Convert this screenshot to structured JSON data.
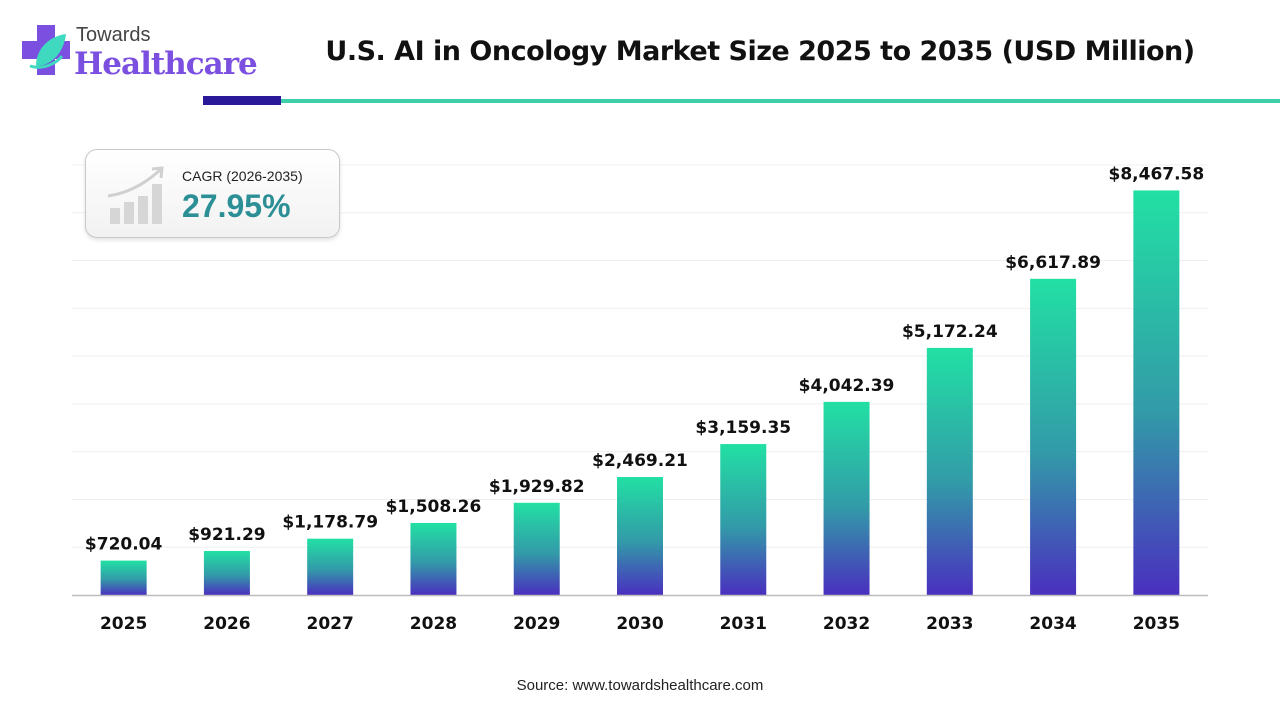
{
  "brand": {
    "line1": "Towards",
    "line2": "Healthcare"
  },
  "cagr": {
    "label": "CAGR (2026-2035)",
    "value": "27.95%"
  },
  "source": "Source: www.towardshealthcare.com",
  "colors": {
    "bar_top": "#22e0a4",
    "bar_bottom": "#4a2fbf",
    "accent_dark": "#2a1a9a",
    "accent_teal": "#3ccfa8",
    "cagr_text": "#2d8f96"
  },
  "chart_data": {
    "type": "bar",
    "title": "U.S. AI in Oncology Market Size 2025 to 2035 (USD Million)",
    "xlabel": "",
    "ylabel": "",
    "categories": [
      "2025",
      "2026",
      "2027",
      "2028",
      "2029",
      "2030",
      "2031",
      "2032",
      "2033",
      "2034",
      "2035"
    ],
    "values": [
      720.04,
      921.29,
      1178.79,
      1508.26,
      1929.82,
      2469.21,
      3159.35,
      4042.39,
      5172.24,
      6617.89,
      8467.58
    ],
    "labels": [
      "$720.04",
      "$921.29",
      "$1,178.79",
      "$1,508.26",
      "$1,929.82",
      "$2,469.21",
      "$3,159.35",
      "$4,042.39",
      "$5,172.24",
      "$6,617.89",
      "$8,467.58"
    ],
    "ylim": [
      0,
      9000
    ],
    "grid": true,
    "grid_step": 1000
  }
}
